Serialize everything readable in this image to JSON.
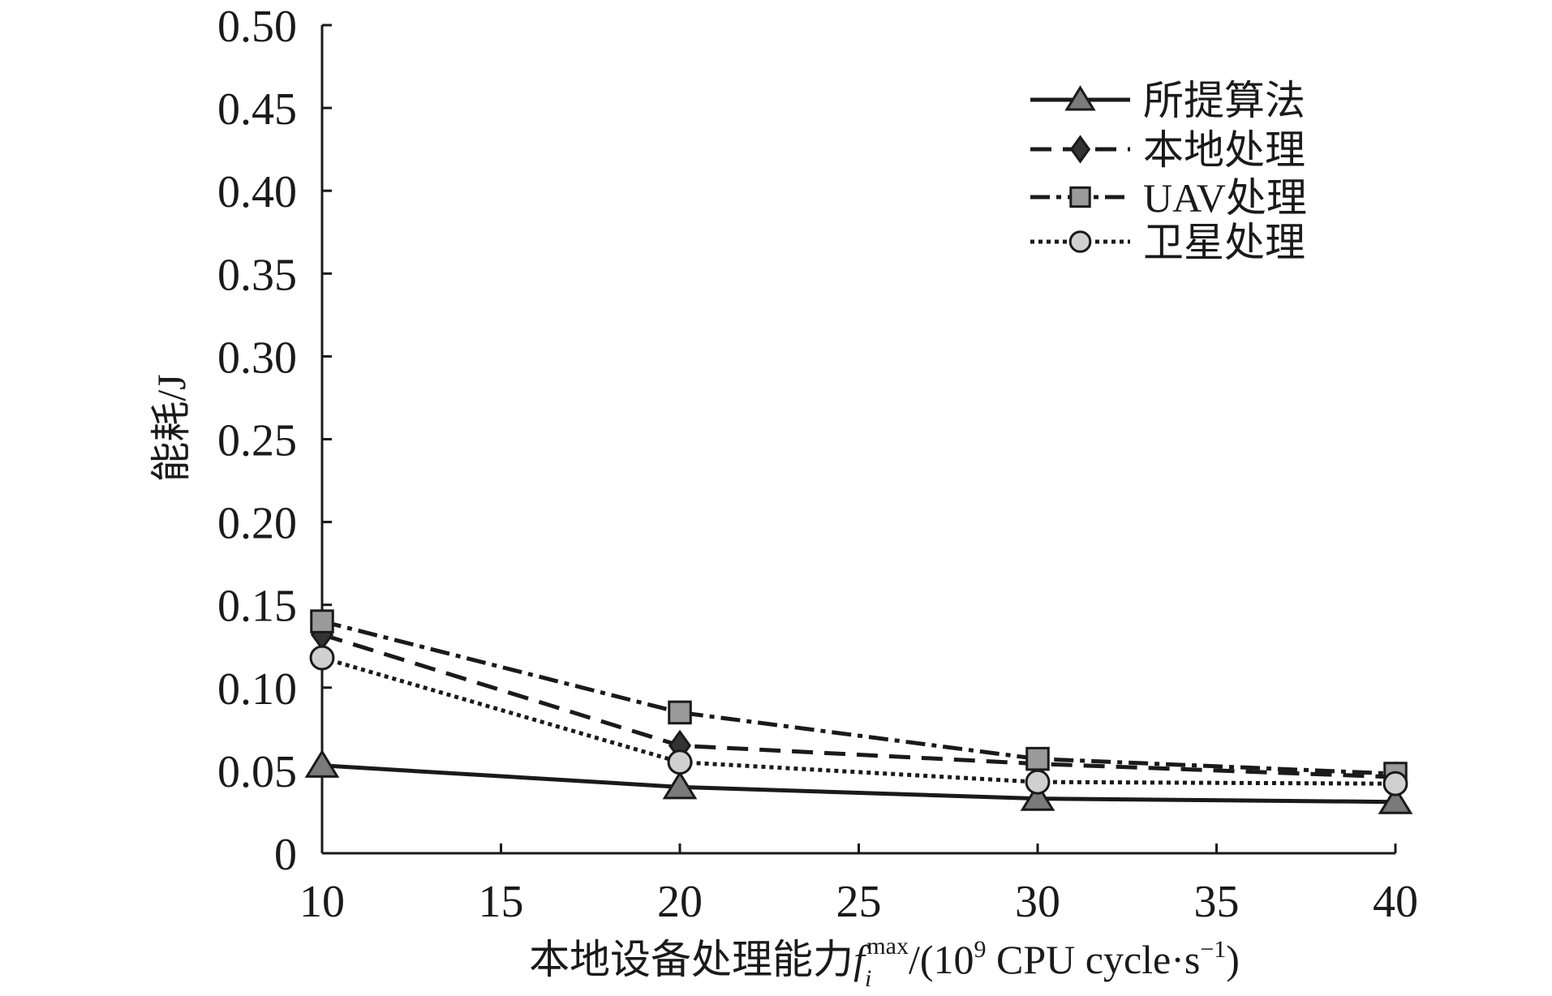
{
  "chart_data": {
    "type": "line",
    "x": [
      10,
      20,
      30,
      40
    ],
    "series": [
      {
        "name": "所提算法",
        "values": [
          0.053,
          0.04,
          0.033,
          0.031
        ],
        "marker": "triangle",
        "line": "solid"
      },
      {
        "name": "本地处理",
        "values": [
          0.132,
          0.065,
          0.054,
          0.046
        ],
        "marker": "diamond",
        "line": "dashed"
      },
      {
        "name": "UAV处理",
        "values": [
          0.14,
          0.085,
          0.057,
          0.048
        ],
        "marker": "square",
        "line": "dash-dot"
      },
      {
        "name": "卫星处理",
        "values": [
          0.118,
          0.055,
          0.043,
          0.042
        ],
        "marker": "circle",
        "line": "dotted"
      }
    ],
    "xticks": [
      "10",
      "15",
      "20",
      "25",
      "30",
      "35",
      "40"
    ],
    "yticks": [
      "0",
      "0.05",
      "0.10",
      "0.15",
      "0.20",
      "0.25",
      "0.30",
      "0.35",
      "0.40",
      "0.45",
      "0.50"
    ],
    "xlim": [
      10,
      40
    ],
    "ylim": [
      0,
      0.5
    ],
    "ylabel": "能耗/J",
    "xlabel": {
      "main": "本地设备处理能力",
      "var": "f",
      "sub": "i",
      "sup": "max",
      "unit_open": "/(10",
      "exp": "9",
      "unit_mid": " CPU cycle·s",
      "exp2": "−1",
      "unit_close": ")"
    },
    "legend": "top-right",
    "grid": false,
    "colors": {
      "ink": "#1a1a1a",
      "marker_fill_triangle": "#7a7a7a",
      "marker_fill_diamond": "#333333",
      "marker_fill_square": "#9a9a9a",
      "marker_fill_circle": "#d0d0d0"
    }
  }
}
